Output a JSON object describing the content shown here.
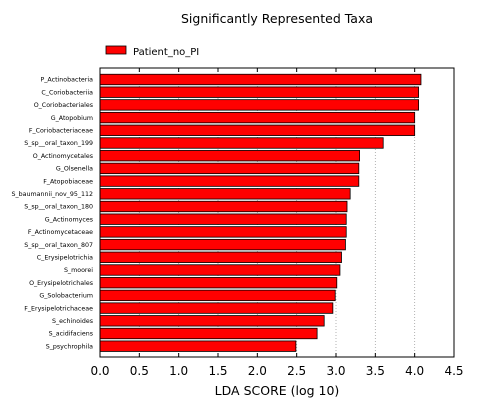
{
  "chart_data": {
    "type": "bar",
    "orientation": "horizontal",
    "title": "Significantly Represented Taxa",
    "xlabel": "LDA SCORE (log 10)",
    "ylabel": "",
    "xlim": [
      0.0,
      4.5
    ],
    "xticks": [
      "0.0",
      "0.5",
      "1.0",
      "1.5",
      "2.0",
      "2.5",
      "3.0",
      "3.5",
      "4.0",
      "4.5"
    ],
    "grid": "vertical dotted",
    "legend_position": "top-left",
    "series": [
      {
        "name": "Patient_no_PI",
        "color": "#ff0000",
        "categories": [
          "P_Actinobacteria",
          "C_Coriobacteriia",
          "O_Coriobacteriales",
          "G_Atopobium",
          "F_Coriobacteriaceae",
          "S_sp__oral_taxon_199",
          "O_Actinomycetales",
          "G_Olsenella",
          "F_Atopobiaceae",
          "S_baumannii_nov_95_112",
          "S_sp__oral_taxon_180",
          "G_Actinomyces",
          "F_Actinomycetaceae",
          "S_sp__oral_taxon_807",
          "C_Erysipelotrichia",
          "S_moorei",
          "O_Erysipelotrichales",
          "G_Solobacterium",
          "F_Erysipelotrichaceae",
          "S_echinoides",
          "S_acidifaciens",
          "S_psychrophila"
        ],
        "values": [
          4.08,
          4.05,
          4.05,
          4.0,
          4.0,
          3.6,
          3.3,
          3.29,
          3.29,
          3.18,
          3.14,
          3.13,
          3.13,
          3.12,
          3.07,
          3.05,
          3.01,
          2.99,
          2.96,
          2.85,
          2.76,
          2.49
        ]
      }
    ]
  }
}
